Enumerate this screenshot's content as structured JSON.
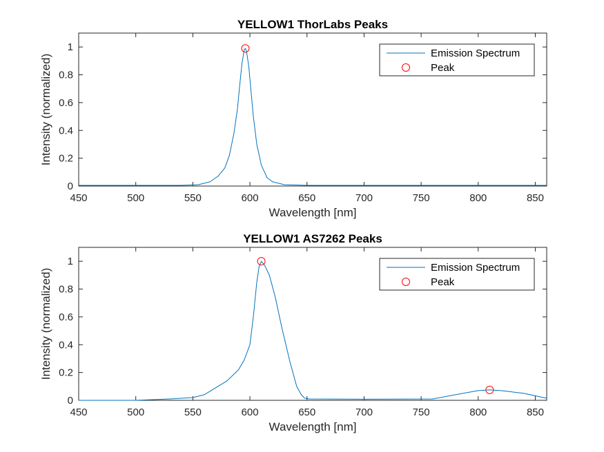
{
  "chart_data": [
    {
      "type": "line",
      "title": "YELLOW1 ThorLabs Peaks",
      "xlabel": "Wavelength [nm]",
      "ylabel": "Intensity (normalized)",
      "xlim": [
        450,
        860
      ],
      "ylim": [
        0,
        1.1
      ],
      "xticks": [
        450,
        500,
        550,
        600,
        650,
        700,
        750,
        800,
        850
      ],
      "yticks": [
        0,
        0.2,
        0.4,
        0.6,
        0.8,
        1
      ],
      "grid": false,
      "legend_position": "top-right",
      "legend": [
        "Emission Spectrum",
        "Peak"
      ],
      "series": [
        {
          "name": "Emission Spectrum",
          "color": "#0072BD",
          "x": [
            450,
            540,
            555,
            565,
            572,
            578,
            582,
            586,
            589,
            591,
            593,
            595,
            596,
            597,
            599,
            601,
            603,
            606,
            610,
            615,
            620,
            630,
            650,
            860
          ],
          "y": [
            0.005,
            0.005,
            0.01,
            0.03,
            0.07,
            0.13,
            0.22,
            0.38,
            0.55,
            0.72,
            0.88,
            0.98,
            0.99,
            0.97,
            0.86,
            0.68,
            0.5,
            0.3,
            0.15,
            0.06,
            0.03,
            0.01,
            0.005,
            0.005
          ]
        },
        {
          "name": "Peak",
          "color": "#FF0000",
          "marker": "circle",
          "x": [
            596
          ],
          "y": [
            0.99
          ]
        }
      ]
    },
    {
      "type": "line",
      "title": "YELLOW1 AS7262 Peaks",
      "xlabel": "Wavelength [nm]",
      "ylabel": "Intensity (normalized)",
      "xlim": [
        450,
        860
      ],
      "ylim": [
        0,
        1.1
      ],
      "xticks": [
        450,
        500,
        550,
        600,
        650,
        700,
        750,
        800,
        850
      ],
      "yticks": [
        0,
        0.2,
        0.4,
        0.6,
        0.8,
        1
      ],
      "grid": false,
      "legend_position": "top-right",
      "legend": [
        "Emission Spectrum",
        "Peak"
      ],
      "series": [
        {
          "name": "Emission Spectrum",
          "color": "#0072BD",
          "x": [
            450,
            500,
            530,
            550,
            560,
            570,
            580,
            590,
            595,
            600,
            603,
            606,
            608,
            610,
            613,
            617,
            622,
            628,
            635,
            641,
            645,
            648,
            652,
            700,
            760,
            780,
            800,
            810,
            820,
            840,
            860
          ],
          "y": [
            0.0,
            0.0,
            0.01,
            0.02,
            0.04,
            0.09,
            0.14,
            0.22,
            0.29,
            0.4,
            0.6,
            0.85,
            0.96,
            1.0,
            0.97,
            0.9,
            0.75,
            0.52,
            0.28,
            0.1,
            0.04,
            0.015,
            0.01,
            0.008,
            0.01,
            0.04,
            0.07,
            0.075,
            0.07,
            0.05,
            0.015
          ]
        },
        {
          "name": "Peak",
          "color": "#FF0000",
          "marker": "circle",
          "x": [
            610,
            810
          ],
          "y": [
            1.0,
            0.075
          ]
        }
      ]
    }
  ]
}
